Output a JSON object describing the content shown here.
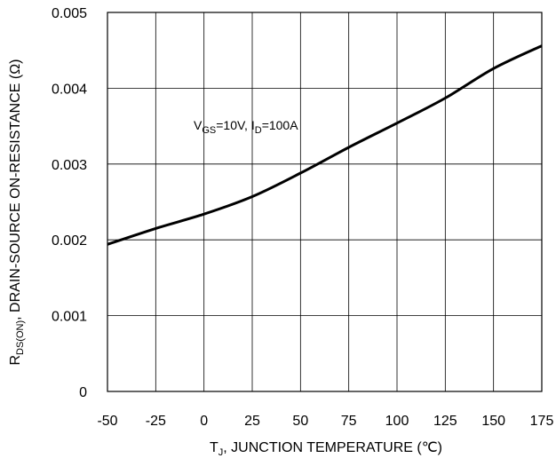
{
  "chart_data": {
    "type": "line",
    "x_ticks": [
      "-50",
      "-25",
      "0",
      "25",
      "50",
      "75",
      "100",
      "125",
      "150",
      "175"
    ],
    "y_ticks": [
      "0",
      "0.001",
      "0.002",
      "0.003",
      "0.004",
      "0.005"
    ],
    "xlim": [
      -50,
      175
    ],
    "ylim": [
      0,
      0.005
    ],
    "grid": true,
    "xlabel": {
      "pre": "T",
      "sub": "J",
      "post": ", JUNCTION TEMPERATURE (℃)"
    },
    "ylabel": {
      "pre": "R",
      "sub": "DS(ON)",
      "post": ", DRAIN-SOURCE ON-RESISTANCE (Ω)"
    },
    "annotation": {
      "v": "V",
      "v_sub": "GS",
      "v_val": "=10V, I",
      "i_sub": "D",
      "i_val": "=100A"
    },
    "series": [
      {
        "x": [
          -50,
          -25,
          0,
          25,
          50,
          75,
          100,
          125,
          150,
          175
        ],
        "y": [
          0.00194,
          0.00215,
          0.00234,
          0.00257,
          0.00288,
          0.00322,
          0.00354,
          0.00387,
          0.00426,
          0.00456
        ]
      }
    ]
  }
}
